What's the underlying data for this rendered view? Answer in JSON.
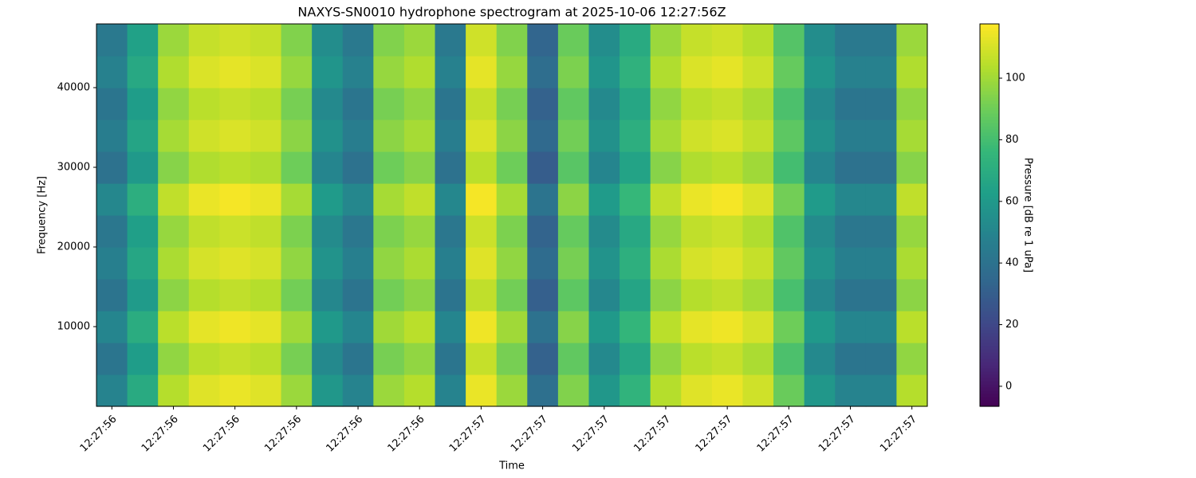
{
  "chart_data": {
    "type": "heatmap",
    "title": "NAXYS-SN0010 hydrophone spectrogram at 2025-10-06 12:27:56Z",
    "x_label": "Time",
    "y_label": "Frequency [Hz]",
    "colorbar_label": "Pressure [dB re 1 uPa]",
    "colormap": "viridis",
    "categories": [
      "12:27:56",
      null,
      "12:27:56",
      null,
      "12:27:56",
      null,
      "12:27:56",
      null,
      "12:27:56",
      null,
      "12:27:56",
      null,
      "12:27:57",
      null,
      "12:27:57",
      null,
      "12:27:57",
      null,
      "12:27:57",
      null,
      "12:27:57",
      null,
      "12:27:57",
      null,
      "12:27:57",
      null,
      "12:27:57"
    ],
    "ybins": [
      0,
      4000,
      8000,
      12000,
      16000,
      20000,
      24000,
      28000,
      32000,
      36000,
      40000,
      44000,
      48000
    ],
    "ylim": [
      0,
      48000
    ],
    "yticks": [
      10000,
      20000,
      30000,
      40000
    ],
    "clim": [
      -6.5,
      117.6
    ],
    "colorbar_ticks": [
      0,
      20,
      40,
      60,
      80,
      100
    ],
    "values": [
      [
        49,
        69,
        104,
        112,
        114,
        112,
        99,
        59,
        49,
        99,
        104,
        49,
        114,
        99,
        39,
        94,
        59,
        74,
        104,
        112,
        114,
        109,
        89,
        59,
        49,
        49,
        104
      ],
      [
        42,
        62,
        97,
        105,
        107,
        105,
        92,
        52,
        42,
        92,
        97,
        42,
        107,
        92,
        32,
        87,
        52,
        67,
        97,
        105,
        107,
        102,
        82,
        52,
        42,
        42,
        97
      ],
      [
        50,
        70,
        105,
        113,
        115,
        113,
        100,
        60,
        50,
        100,
        105,
        50,
        115,
        100,
        40,
        95,
        60,
        75,
        105,
        113,
        115,
        110,
        90,
        60,
        50,
        50,
        105
      ],
      [
        41,
        61,
        96,
        104,
        106,
        104,
        91,
        51,
        41,
        91,
        96,
        41,
        106,
        91,
        31,
        86,
        51,
        66,
        96,
        104,
        106,
        101,
        81,
        51,
        41,
        41,
        96
      ],
      [
        47,
        67,
        102,
        110,
        112,
        110,
        97,
        57,
        47,
        97,
        102,
        47,
        112,
        97,
        37,
        92,
        57,
        72,
        102,
        110,
        112,
        107,
        87,
        57,
        47,
        47,
        102
      ],
      [
        43,
        63,
        98,
        106,
        108,
        106,
        93,
        53,
        43,
        93,
        98,
        43,
        108,
        93,
        33,
        88,
        53,
        68,
        98,
        106,
        108,
        103,
        83,
        53,
        43,
        43,
        98
      ],
      [
        51,
        71,
        106,
        114,
        116,
        114,
        101,
        61,
        51,
        101,
        106,
        51,
        116,
        101,
        41,
        96,
        61,
        76,
        106,
        114,
        116,
        111,
        91,
        61,
        51,
        51,
        106
      ],
      [
        40,
        60,
        95,
        103,
        105,
        103,
        90,
        50,
        40,
        90,
        95,
        40,
        105,
        90,
        30,
        85,
        50,
        65,
        95,
        103,
        105,
        100,
        80,
        50,
        40,
        40,
        95
      ],
      [
        46,
        66,
        101,
        109,
        111,
        109,
        96,
        56,
        46,
        96,
        101,
        46,
        111,
        96,
        36,
        91,
        56,
        71,
        101,
        109,
        111,
        106,
        86,
        56,
        46,
        46,
        101
      ],
      [
        42,
        62,
        97,
        105,
        107,
        105,
        92,
        52,
        42,
        92,
        97,
        42,
        107,
        92,
        32,
        87,
        52,
        67,
        97,
        105,
        107,
        102,
        82,
        52,
        42,
        42,
        97
      ],
      [
        48,
        68,
        103,
        111,
        113,
        111,
        98,
        58,
        48,
        98,
        103,
        48,
        113,
        98,
        38,
        93,
        58,
        73,
        103,
        111,
        113,
        108,
        88,
        58,
        48,
        48,
        103
      ],
      [
        44,
        64,
        99,
        107,
        109,
        107,
        94,
        54,
        44,
        94,
        99,
        44,
        109,
        94,
        34,
        89,
        54,
        69,
        99,
        107,
        109,
        104,
        84,
        54,
        44,
        44,
        99
      ]
    ]
  }
}
